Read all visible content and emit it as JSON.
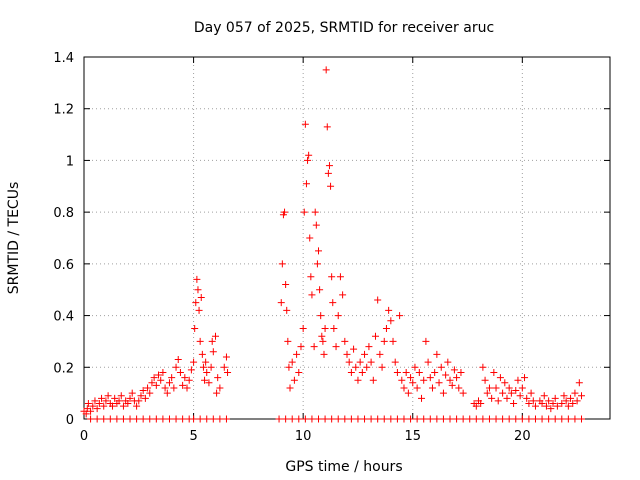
{
  "chart_data": {
    "type": "scatter",
    "title": "Day 057 of 2025, SRMTID for receiver aruc",
    "xlabel": "GPS time / hours",
    "ylabel": "SRMTID / TECUs",
    "xlim": [
      0,
      24
    ],
    "ylim": [
      0,
      1.4
    ],
    "x_ticks": [
      0,
      5,
      10,
      15,
      20
    ],
    "x_tick_labels": [
      "0",
      "5",
      "10",
      "15",
      "20"
    ],
    "y_ticks": [
      0,
      0.2,
      0.4,
      0.6,
      0.8,
      1.0,
      1.2,
      1.4
    ],
    "y_tick_labels": [
      "0",
      "0.2",
      "0.4",
      "0.6",
      "0.8",
      "1",
      "1.2",
      "1.4"
    ],
    "grid": true,
    "marker": "+",
    "series_color": "#ff0000",
    "series": [
      {
        "name": "SRMTID",
        "points": [
          [
            0.0,
            0.03
          ],
          [
            0.1,
            0.02
          ],
          [
            0.15,
            0.04
          ],
          [
            0.2,
            0.06
          ],
          [
            0.3,
            0.03
          ],
          [
            0.4,
            0.05
          ],
          [
            0.5,
            0.07
          ],
          [
            0.6,
            0.04
          ],
          [
            0.7,
            0.06
          ],
          [
            0.8,
            0.08
          ],
          [
            0.9,
            0.05
          ],
          [
            1.0,
            0.07
          ],
          [
            1.1,
            0.09
          ],
          [
            1.2,
            0.06
          ],
          [
            1.3,
            0.05
          ],
          [
            1.4,
            0.08
          ],
          [
            1.5,
            0.06
          ],
          [
            1.6,
            0.07
          ],
          [
            1.7,
            0.09
          ],
          [
            1.8,
            0.05
          ],
          [
            1.9,
            0.07
          ],
          [
            2.0,
            0.06
          ],
          [
            2.1,
            0.08
          ],
          [
            2.2,
            0.1
          ],
          [
            2.3,
            0.07
          ],
          [
            2.4,
            0.05
          ],
          [
            2.5,
            0.07
          ],
          [
            2.6,
            0.09
          ],
          [
            2.7,
            0.11
          ],
          [
            2.8,
            0.08
          ],
          [
            2.9,
            0.12
          ],
          [
            3.0,
            0.1
          ],
          [
            3.1,
            0.14
          ],
          [
            3.2,
            0.16
          ],
          [
            3.3,
            0.13
          ],
          [
            3.4,
            0.17
          ],
          [
            3.5,
            0.15
          ],
          [
            3.6,
            0.18
          ],
          [
            3.7,
            0.12
          ],
          [
            3.8,
            0.1
          ],
          [
            3.9,
            0.14
          ],
          [
            4.0,
            0.16
          ],
          [
            4.1,
            0.12
          ],
          [
            4.2,
            0.2
          ],
          [
            4.3,
            0.23
          ],
          [
            4.4,
            0.18
          ],
          [
            4.5,
            0.13
          ],
          [
            4.6,
            0.16
          ],
          [
            4.7,
            0.12
          ],
          [
            4.8,
            0.15
          ],
          [
            4.9,
            0.19
          ],
          [
            5.0,
            0.22
          ],
          [
            5.05,
            0.35
          ],
          [
            5.1,
            0.45
          ],
          [
            5.15,
            0.54
          ],
          [
            5.2,
            0.5
          ],
          [
            5.25,
            0.42
          ],
          [
            5.3,
            0.3
          ],
          [
            5.35,
            0.47
          ],
          [
            5.4,
            0.25
          ],
          [
            5.45,
            0.2
          ],
          [
            5.5,
            0.15
          ],
          [
            5.55,
            0.22
          ],
          [
            5.6,
            0.18
          ],
          [
            5.7,
            0.14
          ],
          [
            5.8,
            0.2
          ],
          [
            5.85,
            0.3
          ],
          [
            5.9,
            0.26
          ],
          [
            6.0,
            0.32
          ],
          [
            6.05,
            0.1
          ],
          [
            6.1,
            0.16
          ],
          [
            6.2,
            0.12
          ],
          [
            6.4,
            0.2
          ],
          [
            6.5,
            0.24
          ],
          [
            6.55,
            0.18
          ],
          [
            9.0,
            0.45
          ],
          [
            9.05,
            0.6
          ],
          [
            9.1,
            0.79
          ],
          [
            9.15,
            0.8
          ],
          [
            9.2,
            0.52
          ],
          [
            9.25,
            0.42
          ],
          [
            9.3,
            0.3
          ],
          [
            9.35,
            0.2
          ],
          [
            9.4,
            0.12
          ],
          [
            9.5,
            0.22
          ],
          [
            9.6,
            0.15
          ],
          [
            9.7,
            0.25
          ],
          [
            9.8,
            0.18
          ],
          [
            9.9,
            0.28
          ],
          [
            10.0,
            0.35
          ],
          [
            10.05,
            0.8
          ],
          [
            10.1,
            1.14
          ],
          [
            10.15,
            0.91
          ],
          [
            10.2,
            1.0
          ],
          [
            10.25,
            1.02
          ],
          [
            10.3,
            0.7
          ],
          [
            10.35,
            0.55
          ],
          [
            10.4,
            0.48
          ],
          [
            10.5,
            0.28
          ],
          [
            10.55,
            0.8
          ],
          [
            10.6,
            0.75
          ],
          [
            10.65,
            0.6
          ],
          [
            10.7,
            0.65
          ],
          [
            10.75,
            0.5
          ],
          [
            10.8,
            0.4
          ],
          [
            10.85,
            0.32
          ],
          [
            10.9,
            0.3
          ],
          [
            10.95,
            0.25
          ],
          [
            11.0,
            0.35
          ],
          [
            11.05,
            1.35
          ],
          [
            11.1,
            1.13
          ],
          [
            11.15,
            0.95
          ],
          [
            11.2,
            0.98
          ],
          [
            11.25,
            0.9
          ],
          [
            11.3,
            0.55
          ],
          [
            11.35,
            0.45
          ],
          [
            11.4,
            0.35
          ],
          [
            11.5,
            0.28
          ],
          [
            11.6,
            0.4
          ],
          [
            11.7,
            0.55
          ],
          [
            11.8,
            0.48
          ],
          [
            11.9,
            0.3
          ],
          [
            12.0,
            0.25
          ],
          [
            12.1,
            0.22
          ],
          [
            12.2,
            0.18
          ],
          [
            12.3,
            0.27
          ],
          [
            12.4,
            0.2
          ],
          [
            12.5,
            0.15
          ],
          [
            12.6,
            0.22
          ],
          [
            12.7,
            0.18
          ],
          [
            12.8,
            0.25
          ],
          [
            12.9,
            0.2
          ],
          [
            13.0,
            0.28
          ],
          [
            13.1,
            0.22
          ],
          [
            13.2,
            0.15
          ],
          [
            13.3,
            0.32
          ],
          [
            13.4,
            0.46
          ],
          [
            13.5,
            0.25
          ],
          [
            13.6,
            0.2
          ],
          [
            13.7,
            0.3
          ],
          [
            13.8,
            0.35
          ],
          [
            13.9,
            0.42
          ],
          [
            14.0,
            0.38
          ],
          [
            14.1,
            0.3
          ],
          [
            14.2,
            0.22
          ],
          [
            14.3,
            0.18
          ],
          [
            14.4,
            0.4
          ],
          [
            14.5,
            0.15
          ],
          [
            14.6,
            0.12
          ],
          [
            14.7,
            0.18
          ],
          [
            14.8,
            0.1
          ],
          [
            14.9,
            0.16
          ],
          [
            15.0,
            0.14
          ],
          [
            15.1,
            0.2
          ],
          [
            15.2,
            0.12
          ],
          [
            15.3,
            0.18
          ],
          [
            15.4,
            0.08
          ],
          [
            15.5,
            0.15
          ],
          [
            15.6,
            0.3
          ],
          [
            15.7,
            0.22
          ],
          [
            15.8,
            0.16
          ],
          [
            15.9,
            0.12
          ],
          [
            16.0,
            0.18
          ],
          [
            16.1,
            0.25
          ],
          [
            16.2,
            0.14
          ],
          [
            16.3,
            0.2
          ],
          [
            16.4,
            0.1
          ],
          [
            16.5,
            0.17
          ],
          [
            16.6,
            0.22
          ],
          [
            16.7,
            0.15
          ],
          [
            16.8,
            0.13
          ],
          [
            16.9,
            0.19
          ],
          [
            17.0,
            0.16
          ],
          [
            17.1,
            0.12
          ],
          [
            17.2,
            0.18
          ],
          [
            17.3,
            0.1
          ],
          [
            17.8,
            0.06
          ],
          [
            17.9,
            0.05
          ],
          [
            18.0,
            0.07
          ],
          [
            18.1,
            0.06
          ],
          [
            18.2,
            0.2
          ],
          [
            18.3,
            0.15
          ],
          [
            18.4,
            0.1
          ],
          [
            18.5,
            0.12
          ],
          [
            18.6,
            0.08
          ],
          [
            18.7,
            0.18
          ],
          [
            18.8,
            0.12
          ],
          [
            18.9,
            0.07
          ],
          [
            19.0,
            0.16
          ],
          [
            19.1,
            0.1
          ],
          [
            19.2,
            0.14
          ],
          [
            19.3,
            0.08
          ],
          [
            19.4,
            0.12
          ],
          [
            19.5,
            0.1
          ],
          [
            19.6,
            0.06
          ],
          [
            19.7,
            0.11
          ],
          [
            19.8,
            0.15
          ],
          [
            19.9,
            0.09
          ],
          [
            20.0,
            0.12
          ],
          [
            20.1,
            0.16
          ],
          [
            20.2,
            0.08
          ],
          [
            20.3,
            0.06
          ],
          [
            20.4,
            0.1
          ],
          [
            20.5,
            0.07
          ],
          [
            20.6,
            0.05
          ],
          [
            20.8,
            0.07
          ],
          [
            20.9,
            0.06
          ],
          [
            21.0,
            0.09
          ],
          [
            21.1,
            0.05
          ],
          [
            21.2,
            0.07
          ],
          [
            21.3,
            0.04
          ],
          [
            21.4,
            0.06
          ],
          [
            21.5,
            0.08
          ],
          [
            21.6,
            0.05
          ],
          [
            21.8,
            0.06
          ],
          [
            21.9,
            0.09
          ],
          [
            22.0,
            0.07
          ],
          [
            22.1,
            0.05
          ],
          [
            22.2,
            0.08
          ],
          [
            22.3,
            0.06
          ],
          [
            22.4,
            0.1
          ],
          [
            22.5,
            0.07
          ],
          [
            22.6,
            0.14
          ],
          [
            22.7,
            0.09
          ]
        ]
      }
    ],
    "zero_markers_x": [
      0.3,
      0.6,
      0.9,
      1.2,
      1.5,
      1.8,
      2.1,
      2.4,
      2.7,
      3.0,
      3.3,
      3.6,
      3.9,
      4.2,
      4.5,
      4.8,
      5.0,
      5.3,
      5.6,
      5.9,
      6.2,
      6.5,
      8.9,
      9.2,
      9.5,
      9.8,
      10.1,
      10.4,
      10.7,
      11.0,
      11.3,
      11.6,
      11.9,
      12.2,
      12.5,
      12.8,
      13.1,
      13.4,
      13.7,
      14.0,
      14.3,
      14.6,
      14.9,
      15.2,
      15.5,
      15.8,
      16.1,
      16.4,
      16.7,
      17.0,
      17.3,
      17.6,
      17.9,
      18.2,
      18.5,
      18.8,
      19.1,
      19.4,
      19.7,
      20.0,
      20.3,
      20.6,
      20.9,
      21.2,
      21.5,
      21.8,
      22.1,
      22.4,
      22.7
    ]
  }
}
